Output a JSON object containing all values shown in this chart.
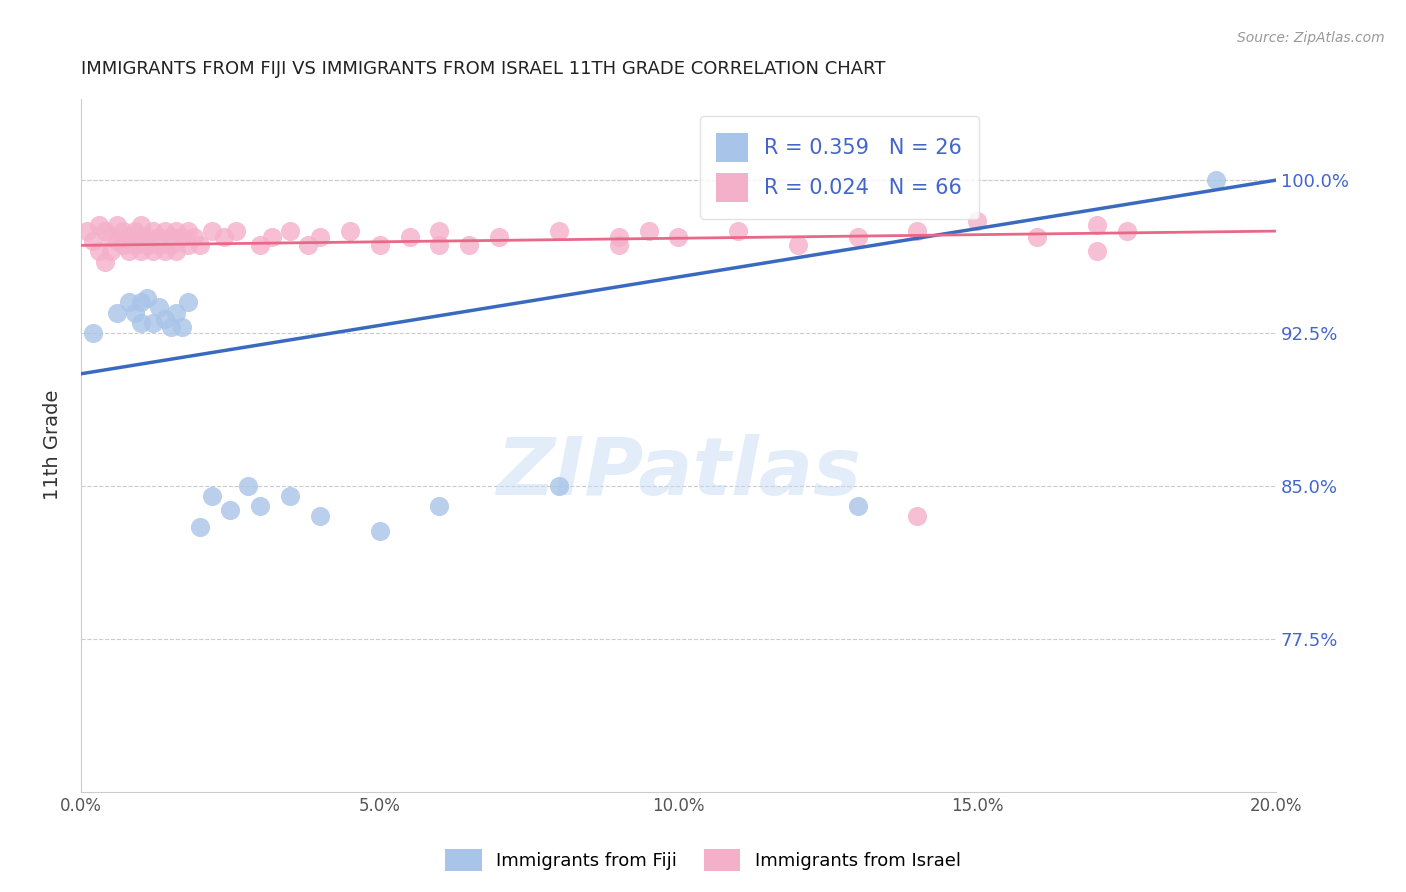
{
  "title": "IMMIGRANTS FROM FIJI VS IMMIGRANTS FROM ISRAEL 11TH GRADE CORRELATION CHART",
  "source_text": "Source: ZipAtlas.com",
  "ylabel": "11th Grade",
  "xlim": [
    0.0,
    0.2
  ],
  "ylim": [
    0.7,
    1.04
  ],
  "yticks": [
    0.775,
    0.85,
    0.925,
    1.0
  ],
  "ytick_labels": [
    "77.5%",
    "85.0%",
    "92.5%",
    "100.0%"
  ],
  "xticks": [
    0.0,
    0.05,
    0.1,
    0.15,
    0.2
  ],
  "xtick_labels": [
    "0.0%",
    "5.0%",
    "10.0%",
    "15.0%",
    "20.0%"
  ],
  "fiji_color": "#a8c4e8",
  "israel_color": "#f4b0c8",
  "fiji_line_color": "#3a6abf",
  "israel_line_color": "#e86888",
  "fiji_R": 0.359,
  "fiji_N": 26,
  "israel_R": 0.024,
  "israel_N": 66,
  "watermark_text": "ZIPatlas",
  "background_color": "#ffffff",
  "grid_color": "#cccccc",
  "title_color": "#222222",
  "right_axis_color": "#4466cc",
  "fiji_scatter_x": [
    0.002,
    0.006,
    0.008,
    0.009,
    0.01,
    0.01,
    0.011,
    0.012,
    0.013,
    0.014,
    0.015,
    0.016,
    0.017,
    0.018,
    0.02,
    0.022,
    0.025,
    0.028,
    0.03,
    0.035,
    0.04,
    0.05,
    0.06,
    0.08,
    0.13,
    0.19
  ],
  "fiji_scatter_y": [
    0.925,
    0.935,
    0.94,
    0.935,
    0.94,
    0.93,
    0.942,
    0.93,
    0.938,
    0.932,
    0.928,
    0.935,
    0.928,
    0.94,
    0.83,
    0.845,
    0.838,
    0.85,
    0.84,
    0.845,
    0.835,
    0.828,
    0.84,
    0.85,
    0.84,
    1.0
  ],
  "israel_scatter_x": [
    0.001,
    0.002,
    0.003,
    0.003,
    0.004,
    0.004,
    0.005,
    0.005,
    0.006,
    0.006,
    0.007,
    0.007,
    0.008,
    0.008,
    0.009,
    0.009,
    0.01,
    0.01,
    0.01,
    0.011,
    0.011,
    0.012,
    0.012,
    0.013,
    0.013,
    0.014,
    0.014,
    0.015,
    0.015,
    0.016,
    0.016,
    0.017,
    0.018,
    0.018,
    0.019,
    0.02,
    0.022,
    0.024,
    0.026,
    0.03,
    0.032,
    0.035,
    0.038,
    0.04,
    0.045,
    0.05,
    0.055,
    0.06,
    0.065,
    0.07,
    0.08,
    0.09,
    0.095,
    0.1,
    0.11,
    0.12,
    0.13,
    0.14,
    0.15,
    0.16,
    0.17,
    0.175,
    0.14,
    0.17,
    0.09,
    0.06
  ],
  "israel_scatter_y": [
    0.975,
    0.97,
    0.978,
    0.965,
    0.975,
    0.96,
    0.972,
    0.965,
    0.978,
    0.97,
    0.975,
    0.968,
    0.972,
    0.965,
    0.975,
    0.968,
    0.972,
    0.978,
    0.965,
    0.972,
    0.968,
    0.975,
    0.965,
    0.972,
    0.968,
    0.965,
    0.975,
    0.972,
    0.968,
    0.975,
    0.965,
    0.972,
    0.975,
    0.968,
    0.972,
    0.968,
    0.975,
    0.972,
    0.975,
    0.968,
    0.972,
    0.975,
    0.968,
    0.972,
    0.975,
    0.968,
    0.972,
    0.975,
    0.968,
    0.972,
    0.975,
    0.968,
    0.975,
    0.972,
    0.975,
    0.968,
    0.972,
    0.975,
    0.98,
    0.972,
    0.978,
    0.975,
    0.835,
    0.965,
    0.972,
    0.968
  ],
  "fiji_line_x": [
    0.0,
    0.2
  ],
  "fiji_line_y": [
    0.905,
    1.0
  ],
  "israel_line_x": [
    0.0,
    0.2
  ],
  "israel_line_y": [
    0.968,
    0.975
  ]
}
